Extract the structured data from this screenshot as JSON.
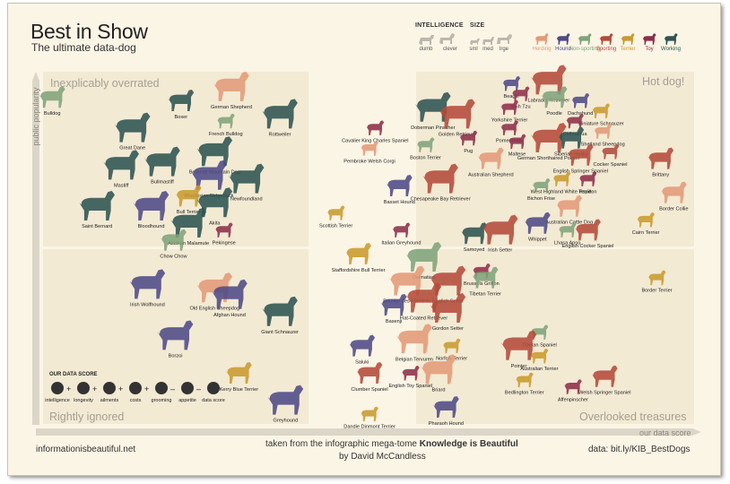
{
  "header": {
    "title": "Best in Show",
    "subtitle": "The ultimate data-dog"
  },
  "footer": {
    "left": "informationisbeautiful.net",
    "mid_prefix": "taken from the infographic mega-tome ",
    "mid_book": "Knowledge is Beautiful",
    "mid_line2": "by David McCandless",
    "right": "data: bit.ly/KIB_BestDogs"
  },
  "quadrants": {
    "top_left": "Inexplicably overrated",
    "top_right": "Hot dog!",
    "bottom_left": "Rightly ignored",
    "bottom_right": "Overlooked treasures"
  },
  "axes": {
    "y_label": "public popularity",
    "x_label": "our data score"
  },
  "legend": {
    "intelligence_title": "INTELLIGENCE",
    "intelligence_items": [
      "dumb",
      "clever"
    ],
    "size_title": "SIZE",
    "size_items": [
      "sml",
      "med",
      "lrge"
    ],
    "categories": [
      {
        "name": "Herding",
        "color": "#e29a78"
      },
      {
        "name": "Hound",
        "color": "#4f4a86"
      },
      {
        "name": "Non-sporting",
        "color": "#7fa37a"
      },
      {
        "name": "Sporting",
        "color": "#b44a3a"
      },
      {
        "name": "Terrier",
        "color": "#c99a2e"
      },
      {
        "name": "Toy",
        "color": "#8e2d4a"
      },
      {
        "name": "Working",
        "color": "#2e5352"
      }
    ]
  },
  "score_legend": {
    "title": "OUR DATA SCORE",
    "items": [
      "intelligence",
      "longevity",
      "ailments",
      "costs",
      "grooming",
      "appetite",
      "data score"
    ],
    "ops": [
      "+",
      "+",
      "+",
      "+",
      "–",
      "–",
      "="
    ]
  },
  "chart_data": {
    "type": "scatter",
    "xlabel": "our data score",
    "ylabel": "public popularity",
    "points": [
      {
        "name": "Bulldog",
        "x": 0.03,
        "y": 0.95,
        "group": "Non-sporting",
        "size": "med"
      },
      {
        "name": "Great Dane",
        "x": 0.46,
        "y": 0.86,
        "group": "Working",
        "size": "lrge"
      },
      {
        "name": "Boxer",
        "x": 0.72,
        "y": 0.94,
        "group": "Working",
        "size": "med"
      },
      {
        "name": "German Shepherd",
        "x": 0.99,
        "y": 0.98,
        "group": "Herding",
        "size": "lrge"
      },
      {
        "name": "French Bulldog",
        "x": 0.96,
        "y": 0.88,
        "group": "Non-sporting",
        "size": "sml"
      },
      {
        "name": "Rottweiler",
        "x": 1.25,
        "y": 0.9,
        "group": "Working",
        "size": "lrge"
      },
      {
        "name": "Mastiff",
        "x": 0.4,
        "y": 0.75,
        "group": "Working",
        "size": "lrge"
      },
      {
        "name": "Bullmastiff",
        "x": 0.62,
        "y": 0.76,
        "group": "Working",
        "size": "lrge"
      },
      {
        "name": "Bernese Mountain Dog",
        "x": 0.9,
        "y": 0.79,
        "group": "Working",
        "size": "lrge"
      },
      {
        "name": "Rhodesian Ridgeback",
        "x": 0.87,
        "y": 0.72,
        "group": "Hound",
        "size": "lrge"
      },
      {
        "name": "Newfoundland",
        "x": 1.07,
        "y": 0.71,
        "group": "Working",
        "size": "lrge"
      },
      {
        "name": "Saint Bernard",
        "x": 0.27,
        "y": 0.63,
        "group": "Working",
        "size": "lrge"
      },
      {
        "name": "Bloodhound",
        "x": 0.56,
        "y": 0.63,
        "group": "Hound",
        "size": "lrge"
      },
      {
        "name": "Bull Terrier",
        "x": 0.76,
        "y": 0.66,
        "group": "Terrier",
        "size": "med"
      },
      {
        "name": "Akita",
        "x": 0.9,
        "y": 0.64,
        "group": "Working",
        "size": "lrge"
      },
      {
        "name": "Alaskan Malamute",
        "x": 0.76,
        "y": 0.58,
        "group": "Working",
        "size": "lrge"
      },
      {
        "name": "Chow Chow",
        "x": 0.68,
        "y": 0.53,
        "group": "Non-sporting",
        "size": "med"
      },
      {
        "name": "Pekingese",
        "x": 0.95,
        "y": 0.56,
        "group": "Toy",
        "size": "sml"
      },
      {
        "name": "Scottish Terrier",
        "x": 1.55,
        "y": 0.61,
        "group": "Terrier",
        "size": "sml"
      },
      {
        "name": "Irish Wolfhound",
        "x": 0.54,
        "y": 0.4,
        "group": "Hound",
        "size": "lrge"
      },
      {
        "name": "Old English Sheepdog",
        "x": 0.9,
        "y": 0.39,
        "group": "Herding",
        "size": "lrge"
      },
      {
        "name": "Afghan Hound",
        "x": 0.98,
        "y": 0.37,
        "group": "Hound",
        "size": "lrge"
      },
      {
        "name": "Giant Schnauzer",
        "x": 1.25,
        "y": 0.32,
        "group": "Working",
        "size": "lrge"
      },
      {
        "name": "Borzoi",
        "x": 0.69,
        "y": 0.25,
        "group": "Hound",
        "size": "lrge"
      },
      {
        "name": "Kerry Blue Terrier",
        "x": 1.03,
        "y": 0.14,
        "group": "Terrier",
        "size": "med"
      },
      {
        "name": "Greyhound",
        "x": 1.28,
        "y": 0.06,
        "group": "Hound",
        "size": "lrge"
      },
      {
        "name": "Dandie Dinmont Terrier",
        "x": 1.73,
        "y": 0.02,
        "group": "Terrier",
        "size": "sml"
      },
      {
        "name": "Doberman Pinscher",
        "x": 2.07,
        "y": 0.92,
        "group": "Working",
        "size": "lrge"
      },
      {
        "name": "Golden Retriever",
        "x": 2.2,
        "y": 0.9,
        "group": "Sporting",
        "size": "lrge"
      },
      {
        "name": "Beagle",
        "x": 2.49,
        "y": 0.99,
        "group": "Hound",
        "size": "sml"
      },
      {
        "name": "Labrador Retriever",
        "x": 2.69,
        "y": 1.0,
        "group": "Sporting",
        "size": "lrge"
      },
      {
        "name": "Shih Tzu",
        "x": 2.54,
        "y": 0.96,
        "group": "Toy",
        "size": "sml"
      },
      {
        "name": "Yorkshire Terrier",
        "x": 2.48,
        "y": 0.92,
        "group": "Toy",
        "size": "sml"
      },
      {
        "name": "Poodle",
        "x": 2.72,
        "y": 0.95,
        "group": "Non-sporting",
        "size": "med"
      },
      {
        "name": "Dachshund",
        "x": 2.86,
        "y": 0.94,
        "group": "Hound",
        "size": "sml"
      },
      {
        "name": "Miniature Schnauzer",
        "x": 2.97,
        "y": 0.91,
        "group": "Terrier",
        "size": "sml"
      },
      {
        "name": "Cavalier King Charles Spaniel",
        "x": 1.76,
        "y": 0.86,
        "group": "Toy",
        "size": "sml"
      },
      {
        "name": "Pug",
        "x": 2.26,
        "y": 0.83,
        "group": "Toy",
        "size": "sml"
      },
      {
        "name": "Pomeranian",
        "x": 2.48,
        "y": 0.86,
        "group": "Toy",
        "size": "sml"
      },
      {
        "name": "Chihuahua",
        "x": 2.83,
        "y": 0.88,
        "group": "Toy",
        "size": "sml"
      },
      {
        "name": "Shetland Sheepdog",
        "x": 2.98,
        "y": 0.85,
        "group": "Herding",
        "size": "sml"
      },
      {
        "name": "Pembroke Welsh Corgi",
        "x": 1.73,
        "y": 0.8,
        "group": "Herding",
        "size": "sml"
      },
      {
        "name": "Boston Terrier",
        "x": 2.03,
        "y": 0.81,
        "group": "Non-sporting",
        "size": "sml"
      },
      {
        "name": "German Shorthaired Pointer",
        "x": 2.69,
        "y": 0.83,
        "group": "Sporting",
        "size": "lrge"
      },
      {
        "name": "Maltese",
        "x": 2.52,
        "y": 0.82,
        "group": "Toy",
        "size": "sml"
      },
      {
        "name": "Siberian Husky",
        "x": 2.81,
        "y": 0.83,
        "group": "Working",
        "size": "med"
      },
      {
        "name": "Australian Shepherd",
        "x": 2.38,
        "y": 0.77,
        "group": "Herding",
        "size": "med"
      },
      {
        "name": "English Springer Spaniel",
        "x": 2.86,
        "y": 0.78,
        "group": "Sporting",
        "size": "med"
      },
      {
        "name": "Cocker Spaniel",
        "x": 3.02,
        "y": 0.79,
        "group": "Sporting",
        "size": "sml"
      },
      {
        "name": "Brittany",
        "x": 3.29,
        "y": 0.77,
        "group": "Sporting",
        "size": "med"
      },
      {
        "name": "Chesapeake Bay Retriever",
        "x": 2.11,
        "y": 0.71,
        "group": "Sporting",
        "size": "lrge"
      },
      {
        "name": "Basset Hound",
        "x": 1.89,
        "y": 0.69,
        "group": "Hound",
        "size": "med"
      },
      {
        "name": "West Highland White Terrier",
        "x": 2.76,
        "y": 0.71,
        "group": "Terrier",
        "size": "sml"
      },
      {
        "name": "Bichon Frise",
        "x": 2.65,
        "y": 0.69,
        "group": "Non-sporting",
        "size": "sml"
      },
      {
        "name": "Papillon",
        "x": 2.9,
        "y": 0.71,
        "group": "Toy",
        "size": "sml"
      },
      {
        "name": "Border Collie",
        "x": 3.36,
        "y": 0.67,
        "group": "Herding",
        "size": "med"
      },
      {
        "name": "Australian Cattle Dog",
        "x": 2.8,
        "y": 0.63,
        "group": "Herding",
        "size": "med"
      },
      {
        "name": "Whippet",
        "x": 2.63,
        "y": 0.58,
        "group": "Hound",
        "size": "med"
      },
      {
        "name": "Lhasa Apso",
        "x": 2.79,
        "y": 0.56,
        "group": "Non-sporting",
        "size": "sml"
      },
      {
        "name": "English Cocker Spaniel",
        "x": 2.9,
        "y": 0.56,
        "group": "Sporting",
        "size": "med"
      },
      {
        "name": "Cairn Terrier",
        "x": 3.21,
        "y": 0.59,
        "group": "Terrier",
        "size": "sml"
      },
      {
        "name": "Italian Greyhound",
        "x": 1.9,
        "y": 0.56,
        "group": "Toy",
        "size": "sml"
      },
      {
        "name": "Samoyed",
        "x": 2.29,
        "y": 0.55,
        "group": "Working",
        "size": "med"
      },
      {
        "name": "Irish Setter",
        "x": 2.43,
        "y": 0.56,
        "group": "Sporting",
        "size": "lrge"
      },
      {
        "name": "Staffordshire Bull Terrier",
        "x": 1.67,
        "y": 0.49,
        "group": "Terrier",
        "size": "med"
      },
      {
        "name": "Dalmatian",
        "x": 2.02,
        "y": 0.48,
        "group": "Non-sporting",
        "size": "lrge"
      },
      {
        "name": "Brussels Griffon",
        "x": 2.33,
        "y": 0.44,
        "group": "Toy",
        "size": "sml"
      },
      {
        "name": "Border Terrier",
        "x": 3.27,
        "y": 0.42,
        "group": "Terrier",
        "size": "sml"
      },
      {
        "name": "Bouvier des Flandres",
        "x": 1.93,
        "y": 0.41,
        "group": "Herding",
        "size": "lrge"
      },
      {
        "name": "English Setter",
        "x": 2.15,
        "y": 0.41,
        "group": "Sporting",
        "size": "lrge"
      },
      {
        "name": "Tibetan Terrier",
        "x": 2.35,
        "y": 0.42,
        "group": "Non-sporting",
        "size": "med"
      },
      {
        "name": "Flat-Coated Retriever",
        "x": 2.02,
        "y": 0.36,
        "group": "Sporting",
        "size": "lrge"
      },
      {
        "name": "Basenji",
        "x": 1.86,
        "y": 0.34,
        "group": "Hound",
        "size": "med"
      },
      {
        "name": "Gordon Setter",
        "x": 2.15,
        "y": 0.33,
        "group": "Sporting",
        "size": "lrge"
      },
      {
        "name": "Saluki",
        "x": 1.69,
        "y": 0.22,
        "group": "Hound",
        "size": "med"
      },
      {
        "name": "Belgian Tervuren",
        "x": 1.97,
        "y": 0.24,
        "group": "Herding",
        "size": "lrge"
      },
      {
        "name": "Norfolk Terrier",
        "x": 2.17,
        "y": 0.22,
        "group": "Terrier",
        "size": "sml"
      },
      {
        "name": "Briard",
        "x": 2.1,
        "y": 0.15,
        "group": "Herding",
        "size": "lrge"
      },
      {
        "name": "Clumber Spaniel",
        "x": 1.73,
        "y": 0.14,
        "group": "Sporting",
        "size": "med"
      },
      {
        "name": "English Toy Spaniel",
        "x": 1.95,
        "y": 0.14,
        "group": "Toy",
        "size": "sml"
      },
      {
        "name": "Pharaoh Hound",
        "x": 2.14,
        "y": 0.04,
        "group": "Hound",
        "size": "med"
      },
      {
        "name": "Tibetan Spaniel",
        "x": 2.64,
        "y": 0.26,
        "group": "Non-sporting",
        "size": "sml"
      },
      {
        "name": "Pointer",
        "x": 2.53,
        "y": 0.22,
        "group": "Sporting",
        "size": "lrge"
      },
      {
        "name": "Australian Terrier",
        "x": 2.64,
        "y": 0.19,
        "group": "Terrier",
        "size": "sml"
      },
      {
        "name": "Bedlington Terrier",
        "x": 2.56,
        "y": 0.12,
        "group": "Terrier",
        "size": "sml"
      },
      {
        "name": "Welsh Springer Spaniel",
        "x": 2.99,
        "y": 0.13,
        "group": "Sporting",
        "size": "med"
      },
      {
        "name": "Affenpinscher",
        "x": 2.82,
        "y": 0.1,
        "group": "Toy",
        "size": "sml"
      }
    ]
  }
}
